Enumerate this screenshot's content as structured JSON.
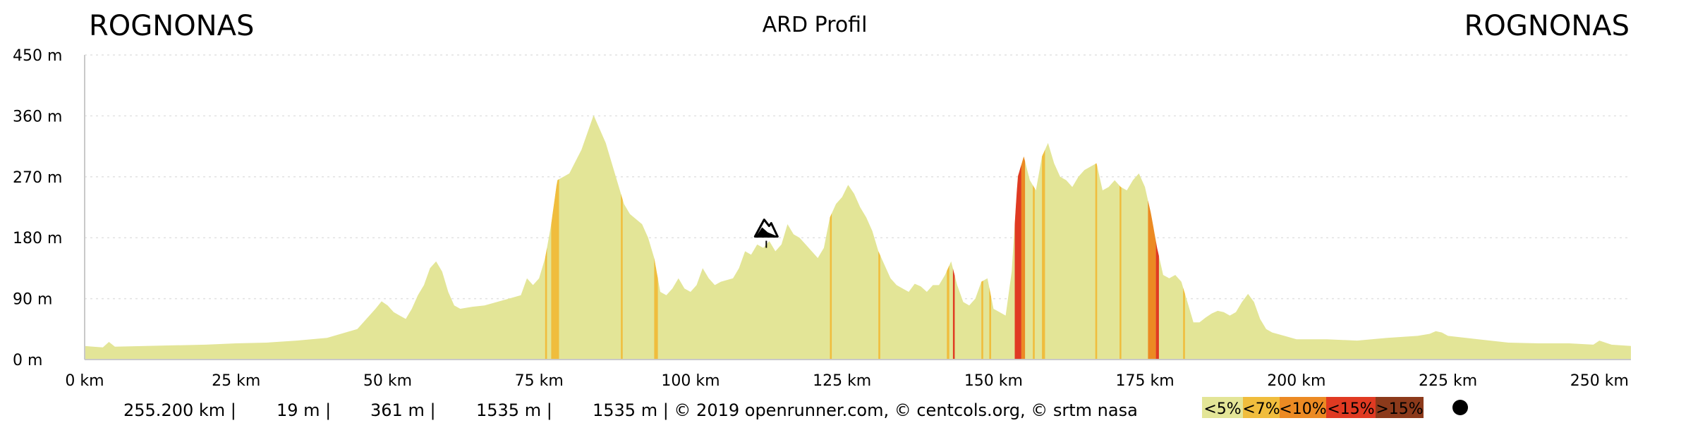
{
  "header": {
    "start_place": "ROGNONAS",
    "title": "ARD Profil",
    "end_place": "ROGNONAS"
  },
  "footer": {
    "distance": "255.200 km |",
    "min_alt": "19 m |",
    "max_alt": "361 m |",
    "climb": "1535 m |",
    "descent_credits": "1535 m | © 2019 openrunner.com, © centcols.org, © srtm nasa"
  },
  "legend": [
    {
      "label": "<5%",
      "color": "#e3e597"
    },
    {
      "label": "<7%",
      "color": "#f0bd3d"
    },
    {
      "label": "<10%",
      "color": "#ec8a23"
    },
    {
      "label": "<15%",
      "color": "#e03a22"
    },
    {
      "label": ">15%",
      "color": "#8c3a1b"
    }
  ],
  "icons": {
    "col_marker": "mountain-col-icon",
    "legend_dot": "dot-icon"
  },
  "colors": {
    "fill": "#e3e597",
    "axis": "#c9c9c9",
    "grid": "#e2e2e2"
  },
  "chart_data": {
    "type": "area",
    "xlabel": "",
    "ylabel": "",
    "xlim": [
      0,
      255.2
    ],
    "ylim": [
      0,
      450
    ],
    "x_unit": "km",
    "y_unit": "m",
    "grid": "horizontal dotted",
    "x_ticks": [
      "0 km",
      "25 km",
      "50 km",
      "75 km",
      "100 km",
      "125 km",
      "150 km",
      "175 km",
      "200 km",
      "225 km",
      "250 km"
    ],
    "y_ticks": [
      "0 m",
      "90 m",
      "180 m",
      "270 m",
      "360 m",
      "450 m"
    ],
    "profile": [
      [
        0,
        20
      ],
      [
        3,
        18
      ],
      [
        4,
        26
      ],
      [
        5,
        19
      ],
      [
        10,
        20
      ],
      [
        15,
        21
      ],
      [
        20,
        22
      ],
      [
        25,
        24
      ],
      [
        30,
        25
      ],
      [
        35,
        28
      ],
      [
        40,
        32
      ],
      [
        45,
        45
      ],
      [
        48,
        75
      ],
      [
        49,
        86
      ],
      [
        50,
        80
      ],
      [
        51,
        70
      ],
      [
        52,
        65
      ],
      [
        53,
        60
      ],
      [
        54,
        75
      ],
      [
        55,
        95
      ],
      [
        56,
        110
      ],
      [
        57,
        135
      ],
      [
        58,
        145
      ],
      [
        59,
        130
      ],
      [
        60,
        100
      ],
      [
        61,
        80
      ],
      [
        62,
        75
      ],
      [
        64,
        78
      ],
      [
        66,
        80
      ],
      [
        70,
        90
      ],
      [
        72,
        95
      ],
      [
        73,
        120
      ],
      [
        74,
        110
      ],
      [
        75,
        120
      ],
      [
        76,
        150
      ],
      [
        77,
        200
      ],
      [
        78,
        265
      ],
      [
        80,
        275
      ],
      [
        82,
        310
      ],
      [
        84,
        361
      ],
      [
        86,
        320
      ],
      [
        88,
        260
      ],
      [
        89,
        230
      ],
      [
        90,
        215
      ],
      [
        92,
        200
      ],
      [
        93,
        180
      ],
      [
        94,
        150
      ],
      [
        95,
        100
      ],
      [
        96,
        95
      ],
      [
        97,
        105
      ],
      [
        98,
        120
      ],
      [
        99,
        105
      ],
      [
        100,
        100
      ],
      [
        101,
        110
      ],
      [
        102,
        135
      ],
      [
        103,
        120
      ],
      [
        104,
        110
      ],
      [
        105,
        115
      ],
      [
        107,
        120
      ],
      [
        108,
        135
      ],
      [
        109,
        160
      ],
      [
        110,
        155
      ],
      [
        111,
        170
      ],
      [
        112,
        165
      ],
      [
        113,
        175
      ],
      [
        114,
        160
      ],
      [
        115,
        170
      ],
      [
        116,
        200
      ],
      [
        117,
        185
      ],
      [
        118,
        180
      ],
      [
        119,
        170
      ],
      [
        120,
        160
      ],
      [
        121,
        150
      ],
      [
        122,
        165
      ],
      [
        123,
        210
      ],
      [
        124,
        230
      ],
      [
        125,
        240
      ],
      [
        126,
        258
      ],
      [
        127,
        245
      ],
      [
        128,
        225
      ],
      [
        129,
        210
      ],
      [
        130,
        190
      ],
      [
        131,
        160
      ],
      [
        132,
        140
      ],
      [
        133,
        120
      ],
      [
        134,
        110
      ],
      [
        135,
        105
      ],
      [
        136,
        100
      ],
      [
        137,
        112
      ],
      [
        138,
        108
      ],
      [
        139,
        100
      ],
      [
        140,
        110
      ],
      [
        141,
        110
      ],
      [
        142,
        125
      ],
      [
        143,
        145
      ],
      [
        144,
        110
      ],
      [
        145,
        85
      ],
      [
        146,
        80
      ],
      [
        147,
        90
      ],
      [
        148,
        115
      ],
      [
        149,
        120
      ],
      [
        150,
        75
      ],
      [
        151,
        70
      ],
      [
        152,
        65
      ],
      [
        153,
        130
      ],
      [
        154,
        270
      ],
      [
        155,
        300
      ],
      [
        156,
        265
      ],
      [
        157,
        250
      ],
      [
        158,
        300
      ],
      [
        159,
        320
      ],
      [
        160,
        290
      ],
      [
        161,
        270
      ],
      [
        162,
        265
      ],
      [
        163,
        255
      ],
      [
        164,
        270
      ],
      [
        165,
        280
      ],
      [
        166,
        285
      ],
      [
        167,
        290
      ],
      [
        168,
        250
      ],
      [
        169,
        255
      ],
      [
        170,
        265
      ],
      [
        171,
        255
      ],
      [
        172,
        250
      ],
      [
        173,
        265
      ],
      [
        174,
        275
      ],
      [
        175,
        255
      ],
      [
        176,
        215
      ],
      [
        177,
        165
      ],
      [
        178,
        125
      ],
      [
        179,
        120
      ],
      [
        180,
        125
      ],
      [
        181,
        115
      ],
      [
        182,
        85
      ],
      [
        183,
        55
      ],
      [
        184,
        55
      ],
      [
        185,
        62
      ],
      [
        186,
        68
      ],
      [
        187,
        72
      ],
      [
        188,
        70
      ],
      [
        189,
        65
      ],
      [
        190,
        70
      ],
      [
        191,
        85
      ],
      [
        192,
        97
      ],
      [
        193,
        85
      ],
      [
        194,
        60
      ],
      [
        195,
        45
      ],
      [
        196,
        40
      ],
      [
        198,
        35
      ],
      [
        200,
        30
      ],
      [
        205,
        30
      ],
      [
        210,
        28
      ],
      [
        215,
        32
      ],
      [
        220,
        35
      ],
      [
        222,
        38
      ],
      [
        223,
        42
      ],
      [
        224,
        40
      ],
      [
        225,
        35
      ],
      [
        230,
        30
      ],
      [
        235,
        25
      ],
      [
        240,
        24
      ],
      [
        245,
        24
      ],
      [
        249,
        22
      ],
      [
        250,
        28
      ],
      [
        251,
        25
      ],
      [
        252,
        22
      ],
      [
        255.2,
        20
      ]
    ],
    "slope_bands": [
      {
        "from": 76,
        "to": 76.3,
        "slope": "<7%"
      },
      {
        "from": 77,
        "to": 78.3,
        "slope": "<7%"
      },
      {
        "from": 88.5,
        "to": 88.8,
        "slope": "<7%"
      },
      {
        "from": 94,
        "to": 94.6,
        "slope": "<7%"
      },
      {
        "from": 123,
        "to": 123.3,
        "slope": "<7%"
      },
      {
        "from": 131,
        "to": 131.3,
        "slope": "<7%"
      },
      {
        "from": 142.3,
        "to": 142.7,
        "slope": "<7%"
      },
      {
        "from": 143.3,
        "to": 143.6,
        "slope": "<15%"
      },
      {
        "from": 148,
        "to": 148.3,
        "slope": "<7%"
      },
      {
        "from": 149.3,
        "to": 149.6,
        "slope": "<7%"
      },
      {
        "from": 153.5,
        "to": 154.6,
        "slope": "<15%"
      },
      {
        "from": 154.6,
        "to": 155.2,
        "slope": "<10%"
      },
      {
        "from": 156.5,
        "to": 156.8,
        "slope": "<7%"
      },
      {
        "from": 158,
        "to": 158.5,
        "slope": "<7%"
      },
      {
        "from": 166.8,
        "to": 167.1,
        "slope": "<7%"
      },
      {
        "from": 170.8,
        "to": 171.1,
        "slope": "<7%"
      },
      {
        "from": 175.5,
        "to": 176.8,
        "slope": "<10%"
      },
      {
        "from": 176.8,
        "to": 177.3,
        "slope": "<15%"
      },
      {
        "from": 181.3,
        "to": 181.6,
        "slope": "<7%"
      }
    ],
    "annotations": [
      {
        "type": "col",
        "x": 112.5,
        "y": 163
      }
    ]
  }
}
